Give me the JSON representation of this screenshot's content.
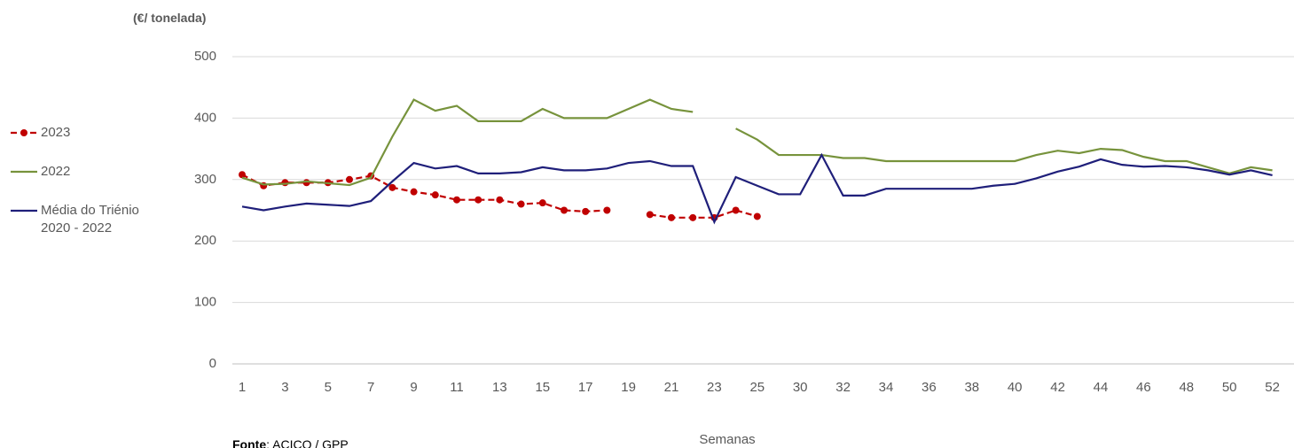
{
  "chart_data": {
    "type": "line",
    "y_label": "(€/ tonelada)",
    "x_label": "Semanas",
    "source_label": "Fonte",
    "source_text": ": ACICO / GPP",
    "categories": [
      "1",
      null,
      "3",
      null,
      "5",
      null,
      "7",
      null,
      "9",
      null,
      "11",
      null,
      "13",
      null,
      "15",
      null,
      "17",
      null,
      "19",
      null,
      "21",
      null,
      "23",
      null,
      "25",
      null,
      "30",
      null,
      "32",
      null,
      "34",
      null,
      "36",
      null,
      "38",
      null,
      "40",
      null,
      "42",
      null,
      "44",
      null,
      "46",
      null,
      "48",
      null,
      "50",
      null,
      "52"
    ],
    "ylim": [
      0,
      500
    ],
    "yticks": [
      0,
      100,
      200,
      300,
      400,
      500
    ],
    "grid": true,
    "series": [
      {
        "name": "2023",
        "color": "#c00000",
        "dashed": true,
        "markers": true,
        "values": [
          308,
          290,
          295,
          295,
          295,
          300,
          306,
          287,
          280,
          275,
          267,
          267,
          267,
          260,
          262,
          250,
          248,
          250,
          null,
          243,
          238,
          238,
          238,
          250,
          240,
          null,
          null,
          null,
          null,
          null,
          null,
          null,
          null,
          null,
          null,
          null,
          null,
          null,
          null,
          null,
          null,
          null,
          null,
          null,
          null,
          null,
          null,
          null,
          null
        ]
      },
      {
        "name": "2022",
        "color": "#77933c",
        "values": [
          303,
          292,
          293,
          297,
          294,
          291,
          303,
          370,
          430,
          412,
          420,
          395,
          395,
          395,
          415,
          400,
          400,
          400,
          415,
          430,
          415,
          410,
          null,
          383,
          365,
          340,
          340,
          340,
          335,
          335,
          330,
          330,
          330,
          330,
          330,
          330,
          330,
          340,
          347,
          343,
          350,
          348,
          337,
          330,
          330,
          320,
          310,
          320,
          315
        ]
      },
      {
        "name": "Média do Triénio 2020 - 2022",
        "color": "#1f1f7a",
        "values": [
          256,
          250,
          256,
          261,
          259,
          257,
          265,
          297,
          327,
          318,
          322,
          310,
          310,
          312,
          320,
          315,
          315,
          318,
          327,
          330,
          322,
          322,
          231,
          304,
          290,
          276,
          276,
          340,
          274,
          274,
          285,
          285,
          285,
          285,
          285,
          290,
          293,
          302,
          313,
          321,
          333,
          324,
          321,
          322,
          320,
          315,
          308,
          315,
          307
        ]
      }
    ]
  }
}
